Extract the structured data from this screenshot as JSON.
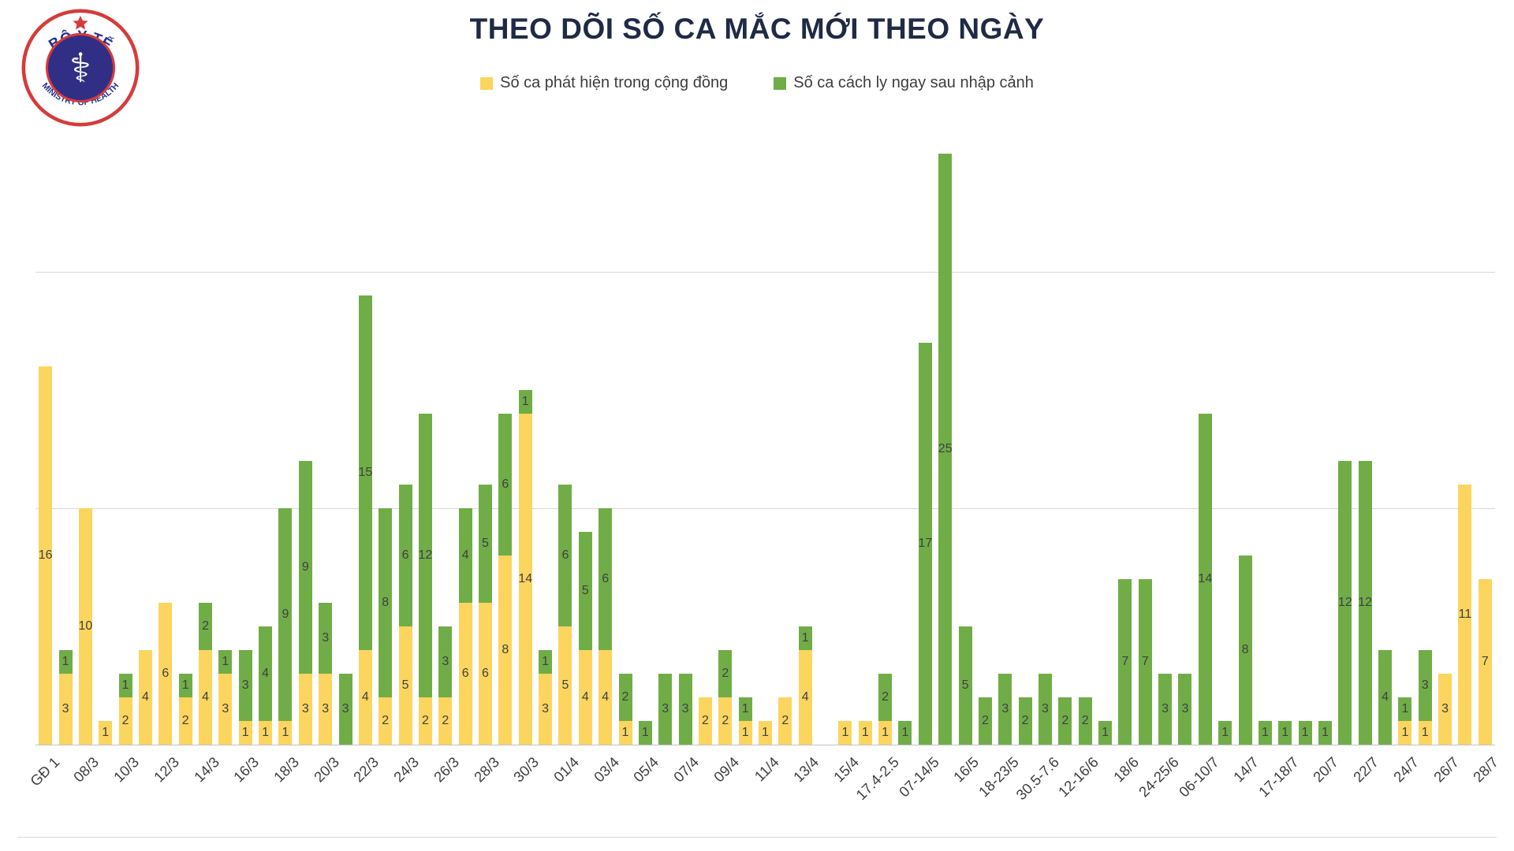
{
  "header": {
    "title": "THEO DÕI SỐ CA MẮC MỚI THEO NGÀY",
    "logo": {
      "top_text": "BỘ Y TẾ",
      "bottom_text": "MINISTRY OF HEALTH"
    }
  },
  "legend": [
    {
      "label": "Số ca phát hiện trong cộng đồng",
      "color": "#FBD55E"
    },
    {
      "label": "Số ca cách ly ngay sau nhập cảnh",
      "color": "#70AD47"
    }
  ],
  "colors": {
    "community": "#FBD55E",
    "quarantined": "#70AD47",
    "title": "#1f2b45",
    "gridline": "#d9d9d9",
    "value_label": "#404040"
  },
  "chart_data": {
    "type": "bar",
    "stacked": true,
    "title": "THEO DÕI SỐ CA MẮC MỚI THEO NGÀY",
    "xlabel": "",
    "ylabel": "",
    "ylim": [
      0,
      26
    ],
    "gridlines": [
      0,
      10,
      20
    ],
    "grid": true,
    "legend_position": "top",
    "tick_every": 2,
    "categories": [
      "GĐ 1",
      "08/3",
      "10/3",
      "12/3",
      "14/3",
      "16/3",
      "18/3",
      "20/3",
      "22/3",
      "24/3",
      "26/3",
      "28/3",
      "30/3",
      "01/4",
      "03/4",
      "05/4",
      "07/4",
      "09/4",
      "11/4",
      "13/4",
      "15/4",
      "17.4-2.5",
      "07-14/5",
      "16/5",
      "18-23/5",
      "30.5-7.6",
      "12-16/6",
      "18/6",
      "24-25/6",
      "06-10/7",
      "14/7",
      "17-18/7",
      "20/7",
      "22/7",
      "24/7",
      "26/7",
      "28/7"
    ],
    "series": [
      {
        "name": "Số ca phát hiện trong cộng đồng",
        "color": "#FBD55E",
        "values": [
          16,
          3,
          10,
          1,
          2,
          4,
          6,
          2,
          4,
          3,
          1,
          1,
          1,
          3,
          3,
          0,
          4,
          2,
          5,
          2,
          2,
          6,
          6,
          8,
          14,
          3,
          5,
          4,
          4,
          1,
          0,
          0,
          0,
          2,
          2,
          1,
          1,
          2,
          4,
          0,
          1,
          1,
          1,
          0,
          0,
          0,
          0,
          0,
          0,
          0,
          0,
          0,
          0,
          0,
          0,
          0,
          0,
          0,
          0,
          0,
          0,
          0,
          0,
          0,
          0,
          0,
          0,
          0,
          1,
          1,
          3,
          11,
          7
        ]
      },
      {
        "name": "Số ca cách ly ngay sau nhập cảnh",
        "color": "#70AD47",
        "values": [
          0,
          1,
          0,
          0,
          1,
          0,
          0,
          1,
          2,
          1,
          3,
          4,
          9,
          9,
          3,
          3,
          15,
          8,
          6,
          12,
          3,
          4,
          5,
          6,
          1,
          1,
          6,
          5,
          6,
          2,
          1,
          3,
          3,
          0,
          2,
          1,
          0,
          0,
          1,
          0,
          0,
          0,
          2,
          1,
          17,
          25,
          5,
          2,
          3,
          2,
          3,
          2,
          2,
          1,
          7,
          7,
          3,
          3,
          14,
          1,
          8,
          1,
          1,
          1,
          1,
          12,
          12,
          4,
          1,
          3,
          0,
          0,
          0
        ]
      }
    ]
  }
}
